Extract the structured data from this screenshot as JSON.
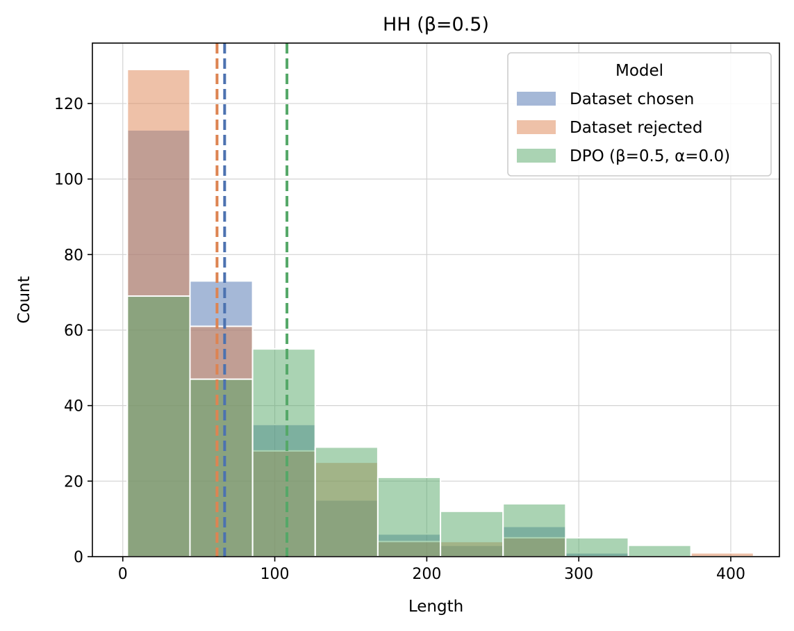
{
  "chart_data": {
    "type": "bar",
    "title": "HH (β=0.5)",
    "xlabel": "Length",
    "ylabel": "Count",
    "xlim": [
      -20,
      432
    ],
    "ylim": [
      0,
      136
    ],
    "xticks": [
      0,
      100,
      200,
      300,
      400
    ],
    "yticks": [
      0,
      20,
      40,
      60,
      80,
      100,
      120
    ],
    "grid": true,
    "bin_edges": [
      3,
      44.2,
      85.4,
      126.6,
      167.8,
      209,
      250.2,
      291.4,
      332.6,
      373.8,
      415
    ],
    "series": [
      {
        "name": "Dataset chosen",
        "color": "#4c72b0",
        "values": [
          113,
          73,
          35,
          15,
          6,
          3,
          8,
          1,
          0,
          0
        ],
        "mean": 67
      },
      {
        "name": "Dataset rejected",
        "color": "#dd8452",
        "values": [
          129,
          61,
          28,
          25,
          4,
          4,
          5,
          0,
          0,
          1
        ],
        "mean": 62
      },
      {
        "name": "DPO (β=0.5, α=0.0)",
        "color": "#55a868",
        "values": [
          69,
          47,
          55,
          29,
          21,
          12,
          14,
          5,
          3,
          0
        ],
        "mean": 108
      }
    ],
    "legend": {
      "title": "Model",
      "position": "top-right"
    }
  }
}
